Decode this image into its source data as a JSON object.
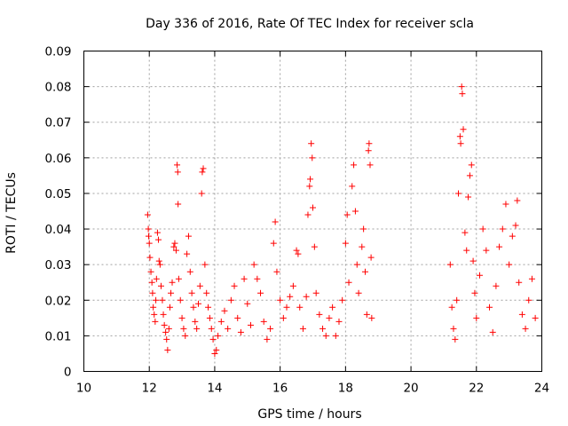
{
  "chart_data": {
    "type": "scatter",
    "title": "Day 336 of 2016, Rate Of TEC Index for receiver scla",
    "xlabel": "GPS time / hours",
    "ylabel": "ROTI / TECUs",
    "xlim": [
      10,
      24
    ],
    "ylim": [
      0,
      0.09
    ],
    "x_ticks": [
      10,
      12,
      14,
      16,
      18,
      20,
      22,
      24
    ],
    "x_tick_labels": [
      "10",
      "12",
      "14",
      "16",
      "18",
      "20",
      "22",
      "24"
    ],
    "y_ticks": [
      0,
      0.01,
      0.02,
      0.03,
      0.04,
      0.05,
      0.06,
      0.07,
      0.08,
      0.09
    ],
    "y_tick_labels": [
      "0",
      "0.01",
      "0.02",
      "0.03",
      "0.04",
      "0.05",
      "0.06",
      "0.07",
      "0.08",
      "0.09"
    ],
    "grid": true,
    "marker": "+",
    "series": [
      {
        "name": "ROTI",
        "color": "#ff0000",
        "points": [
          [
            11.95,
            0.044
          ],
          [
            11.97,
            0.04
          ],
          [
            11.98,
            0.038
          ],
          [
            12.0,
            0.036
          ],
          [
            12.02,
            0.032
          ],
          [
            12.05,
            0.028
          ],
          [
            12.08,
            0.025
          ],
          [
            12.1,
            0.022
          ],
          [
            12.12,
            0.018
          ],
          [
            12.15,
            0.016
          ],
          [
            12.18,
            0.014
          ],
          [
            12.2,
            0.02
          ],
          [
            12.22,
            0.026
          ],
          [
            12.25,
            0.039
          ],
          [
            12.28,
            0.037
          ],
          [
            12.3,
            0.031
          ],
          [
            12.33,
            0.03
          ],
          [
            12.36,
            0.024
          ],
          [
            12.4,
            0.02
          ],
          [
            12.43,
            0.016
          ],
          [
            12.46,
            0.013
          ],
          [
            12.5,
            0.011
          ],
          [
            12.53,
            0.009
          ],
          [
            12.56,
            0.006
          ],
          [
            12.6,
            0.012
          ],
          [
            12.63,
            0.018
          ],
          [
            12.66,
            0.022
          ],
          [
            12.7,
            0.025
          ],
          [
            12.75,
            0.035
          ],
          [
            12.78,
            0.036
          ],
          [
            12.82,
            0.034
          ],
          [
            12.85,
            0.058
          ],
          [
            12.87,
            0.056
          ],
          [
            12.88,
            0.047
          ],
          [
            12.9,
            0.026
          ],
          [
            12.95,
            0.02
          ],
          [
            13.0,
            0.015
          ],
          [
            13.05,
            0.012
          ],
          [
            13.1,
            0.01
          ],
          [
            13.15,
            0.033
          ],
          [
            13.2,
            0.038
          ],
          [
            13.25,
            0.028
          ],
          [
            13.3,
            0.022
          ],
          [
            13.35,
            0.018
          ],
          [
            13.4,
            0.014
          ],
          [
            13.45,
            0.012
          ],
          [
            13.5,
            0.019
          ],
          [
            13.55,
            0.024
          ],
          [
            13.6,
            0.05
          ],
          [
            13.62,
            0.056
          ],
          [
            13.65,
            0.057
          ],
          [
            13.7,
            0.03
          ],
          [
            13.75,
            0.022
          ],
          [
            13.8,
            0.018
          ],
          [
            13.85,
            0.015
          ],
          [
            13.9,
            0.012
          ],
          [
            13.95,
            0.009
          ],
          [
            14.0,
            0.005
          ],
          [
            14.05,
            0.006
          ],
          [
            14.1,
            0.01
          ],
          [
            14.2,
            0.014
          ],
          [
            14.3,
            0.017
          ],
          [
            14.4,
            0.012
          ],
          [
            14.5,
            0.02
          ],
          [
            14.6,
            0.024
          ],
          [
            14.7,
            0.015
          ],
          [
            14.8,
            0.011
          ],
          [
            14.9,
            0.026
          ],
          [
            15.0,
            0.019
          ],
          [
            15.1,
            0.013
          ],
          [
            15.2,
            0.03
          ],
          [
            15.3,
            0.026
          ],
          [
            15.4,
            0.022
          ],
          [
            15.5,
            0.014
          ],
          [
            15.6,
            0.009
          ],
          [
            15.7,
            0.012
          ],
          [
            15.8,
            0.036
          ],
          [
            15.85,
            0.042
          ],
          [
            15.9,
            0.028
          ],
          [
            16.0,
            0.02
          ],
          [
            16.1,
            0.015
          ],
          [
            16.2,
            0.018
          ],
          [
            16.3,
            0.021
          ],
          [
            16.4,
            0.024
          ],
          [
            16.5,
            0.034
          ],
          [
            16.55,
            0.033
          ],
          [
            16.6,
            0.018
          ],
          [
            16.7,
            0.012
          ],
          [
            16.8,
            0.021
          ],
          [
            16.85,
            0.044
          ],
          [
            16.9,
            0.052
          ],
          [
            16.92,
            0.054
          ],
          [
            16.95,
            0.064
          ],
          [
            16.98,
            0.06
          ],
          [
            17.0,
            0.046
          ],
          [
            17.05,
            0.035
          ],
          [
            17.1,
            0.022
          ],
          [
            17.2,
            0.016
          ],
          [
            17.3,
            0.012
          ],
          [
            17.4,
            0.01
          ],
          [
            17.5,
            0.015
          ],
          [
            17.6,
            0.018
          ],
          [
            17.7,
            0.01
          ],
          [
            17.8,
            0.014
          ],
          [
            17.9,
            0.02
          ],
          [
            18.0,
            0.036
          ],
          [
            18.05,
            0.044
          ],
          [
            18.1,
            0.025
          ],
          [
            18.2,
            0.052
          ],
          [
            18.25,
            0.058
          ],
          [
            18.3,
            0.045
          ],
          [
            18.35,
            0.03
          ],
          [
            18.4,
            0.022
          ],
          [
            18.5,
            0.035
          ],
          [
            18.55,
            0.04
          ],
          [
            18.6,
            0.028
          ],
          [
            18.65,
            0.016
          ],
          [
            18.7,
            0.062
          ],
          [
            18.72,
            0.064
          ],
          [
            18.75,
            0.058
          ],
          [
            18.78,
            0.032
          ],
          [
            18.8,
            0.015
          ],
          [
            21.2,
            0.03
          ],
          [
            21.25,
            0.018
          ],
          [
            21.3,
            0.012
          ],
          [
            21.35,
            0.009
          ],
          [
            21.4,
            0.02
          ],
          [
            21.45,
            0.05
          ],
          [
            21.5,
            0.066
          ],
          [
            21.52,
            0.064
          ],
          [
            21.55,
            0.08
          ],
          [
            21.57,
            0.078
          ],
          [
            21.6,
            0.068
          ],
          [
            21.65,
            0.039
          ],
          [
            21.7,
            0.034
          ],
          [
            21.75,
            0.049
          ],
          [
            21.8,
            0.055
          ],
          [
            21.85,
            0.058
          ],
          [
            21.9,
            0.031
          ],
          [
            21.95,
            0.022
          ],
          [
            22.0,
            0.015
          ],
          [
            22.1,
            0.027
          ],
          [
            22.2,
            0.04
          ],
          [
            22.3,
            0.034
          ],
          [
            22.4,
            0.018
          ],
          [
            22.5,
            0.011
          ],
          [
            22.6,
            0.024
          ],
          [
            22.7,
            0.035
          ],
          [
            22.8,
            0.04
          ],
          [
            22.9,
            0.047
          ],
          [
            23.0,
            0.03
          ],
          [
            23.1,
            0.038
          ],
          [
            23.2,
            0.041
          ],
          [
            23.25,
            0.048
          ],
          [
            23.3,
            0.025
          ],
          [
            23.4,
            0.016
          ],
          [
            23.5,
            0.012
          ],
          [
            23.6,
            0.02
          ],
          [
            23.7,
            0.026
          ],
          [
            23.8,
            0.015
          ]
        ]
      }
    ]
  }
}
